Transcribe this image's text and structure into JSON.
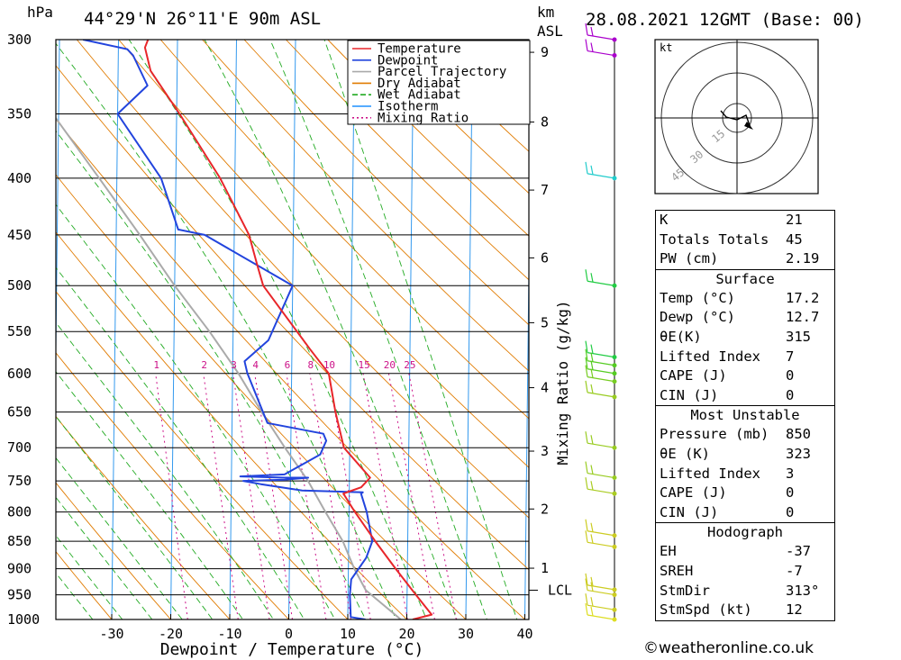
{
  "header": {
    "unit_left": "hPa",
    "location": "44°29'N  26°11'E  90m  ASL",
    "km_label": "km",
    "asl_label": "ASL",
    "datetime": "28.08.2021  12GMT  (Base: 00)"
  },
  "legend": [
    {
      "label": "Temperature",
      "color": "#e8262a",
      "style": "solid"
    },
    {
      "label": "Dewpoint",
      "color": "#2244dd",
      "style": "solid"
    },
    {
      "label": "Parcel Trajectory",
      "color": "#aaaaaa",
      "style": "solid"
    },
    {
      "label": "Dry Adiabat",
      "color": "#e07b00",
      "style": "solid"
    },
    {
      "label": "Wet Adiabat",
      "color": "#22aa22",
      "style": "dashed"
    },
    {
      "label": "Isotherm",
      "color": "#1e90ff",
      "style": "solid"
    },
    {
      "label": "Mixing Ratio",
      "color": "#cc1188",
      "style": "dotted"
    }
  ],
  "chart_data": {
    "type": "line",
    "title": "44°29'N  26°11'E  90m  ASL",
    "xlabel": "Dewpoint / Temperature (°C)",
    "ylabel": "hPa",
    "right_label": "Mixing Ratio (g/kg)",
    "x_ticks": [
      -30,
      -20,
      -10,
      0,
      10,
      20,
      30,
      40
    ],
    "pressure_levels": [
      300,
      350,
      400,
      450,
      500,
      550,
      600,
      650,
      700,
      750,
      800,
      850,
      900,
      950,
      1000
    ],
    "km_ticks": [
      {
        "km": "1",
        "p": 899
      },
      {
        "km": "2",
        "p": 795
      },
      {
        "km": "3",
        "p": 705
      },
      {
        "km": "4",
        "p": 618
      },
      {
        "km": "5",
        "p": 540
      },
      {
        "km": "6",
        "p": 472
      },
      {
        "km": "7",
        "p": 410
      },
      {
        "km": "8",
        "p": 356
      },
      {
        "km": "9",
        "p": 308
      }
    ],
    "lcl": {
      "label": "LCL",
      "p": 941
    },
    "mixing_ratio_labels": [
      "1",
      "2",
      "3",
      "4",
      "6",
      "8",
      "10",
      "15",
      "20",
      "25"
    ],
    "series": [
      {
        "name": "Temperature",
        "color": "#e8262a",
        "points": [
          [
            1000,
            21.0
          ],
          [
            990,
            24.2
          ],
          [
            950,
            21.5
          ],
          [
            900,
            18.0
          ],
          [
            850,
            14.5
          ],
          [
            800,
            11.0
          ],
          [
            770,
            9.0
          ],
          [
            760,
            12.0
          ],
          [
            745,
            13.5
          ],
          [
            700,
            9.0
          ],
          [
            650,
            7.5
          ],
          [
            600,
            6.3
          ],
          [
            570,
            3.0
          ],
          [
            500,
            -5.0
          ],
          [
            480,
            -6.0
          ],
          [
            450,
            -7.5
          ],
          [
            400,
            -12.5
          ],
          [
            350,
            -19.5
          ],
          [
            320,
            -24.5
          ],
          [
            305,
            -25.5
          ],
          [
            300,
            -25.0
          ]
        ]
      },
      {
        "name": "Dewpoint",
        "color": "#2244dd",
        "points": [
          [
            1000,
            13.0
          ],
          [
            995,
            10.5
          ],
          [
            950,
            10.3
          ],
          [
            920,
            10.5
          ],
          [
            880,
            13.0
          ],
          [
            850,
            14.0
          ],
          [
            800,
            13.0
          ],
          [
            770,
            12.0
          ],
          [
            768,
            12.3
          ],
          [
            765,
            2.0
          ],
          [
            755,
            -5.0
          ],
          [
            750,
            -8.0
          ],
          [
            748,
            -1.0
          ],
          [
            745,
            3.0
          ],
          [
            745,
            -1.0
          ],
          [
            743,
            -8.5
          ],
          [
            740,
            -1.0
          ],
          [
            710,
            5.0
          ],
          [
            690,
            6.0
          ],
          [
            680,
            5.5
          ],
          [
            665,
            -4.0
          ],
          [
            600,
            -7.5
          ],
          [
            585,
            -8.0
          ],
          [
            560,
            -4.0
          ],
          [
            500,
            0.0
          ],
          [
            450,
            -15.0
          ],
          [
            445,
            -19.5
          ],
          [
            400,
            -22.5
          ],
          [
            350,
            -30.0
          ],
          [
            330,
            -25.0
          ],
          [
            310,
            -27.5
          ],
          [
            306,
            -28.5
          ],
          [
            300,
            -36.0
          ]
        ]
      },
      {
        "name": "Parcel Trajectory",
        "color": "#aaaaaa",
        "points": [
          [
            1000,
            19.0
          ],
          [
            941,
            13.0
          ],
          [
            900,
            11.0
          ],
          [
            850,
            9.0
          ],
          [
            800,
            6.0
          ],
          [
            750,
            3.0
          ],
          [
            700,
            -1.0
          ],
          [
            650,
            -5.0
          ],
          [
            600,
            -9.0
          ],
          [
            550,
            -14.0
          ],
          [
            500,
            -20.0
          ],
          [
            450,
            -26.0
          ],
          [
            400,
            -33.0
          ],
          [
            350,
            -41.0
          ],
          [
            300,
            -50.0
          ]
        ]
      }
    ]
  },
  "wind_barbs": {
    "label": "Wind profile",
    "levels": [
      {
        "p": 300,
        "color": "#aa00cc"
      },
      {
        "p": 310,
        "color": "#aa00cc"
      },
      {
        "p": 400,
        "color": "#22cccc"
      },
      {
        "p": 500,
        "color": "#22cc44"
      },
      {
        "p": 580,
        "color": "#22cc44"
      },
      {
        "p": 590,
        "color": "#55cc22"
      },
      {
        "p": 600,
        "color": "#55cc22"
      },
      {
        "p": 610,
        "color": "#77cc22"
      },
      {
        "p": 630,
        "color": "#99cc22"
      },
      {
        "p": 700,
        "color": "#99cc22"
      },
      {
        "p": 745,
        "color": "#99cc22"
      },
      {
        "p": 770,
        "color": "#aacc22"
      },
      {
        "p": 840,
        "color": "#cccc22"
      },
      {
        "p": 860,
        "color": "#cccc22"
      },
      {
        "p": 940,
        "color": "#cccc22"
      },
      {
        "p": 950,
        "color": "#cccc22"
      },
      {
        "p": 980,
        "color": "#cccc22"
      },
      {
        "p": 1000,
        "color": "#dddd22"
      }
    ]
  },
  "hodograph": {
    "unit": "kt",
    "ring_labels": [
      "15",
      "30",
      "45"
    ]
  },
  "indices": [
    {
      "head": "",
      "rows": [
        {
          "label": "K",
          "value": "21"
        },
        {
          "label": "Totals Totals",
          "value": "45"
        },
        {
          "label": "PW (cm)",
          "value": "2.19"
        }
      ]
    },
    {
      "head": "Surface",
      "rows": [
        {
          "label": "Temp (°C)",
          "value": "17.2"
        },
        {
          "label": "Dewp (°C)",
          "value": "12.7"
        },
        {
          "label": "θE(K)",
          "value": "315"
        },
        {
          "label": "Lifted Index",
          "value": "7"
        },
        {
          "label": "CAPE (J)",
          "value": "0"
        },
        {
          "label": "CIN (J)",
          "value": "0"
        }
      ]
    },
    {
      "head": "Most Unstable",
      "rows": [
        {
          "label": "Pressure (mb)",
          "value": "850"
        },
        {
          "label": "θE (K)",
          "value": "323"
        },
        {
          "label": "Lifted Index",
          "value": "3"
        },
        {
          "label": "CAPE (J)",
          "value": "0"
        },
        {
          "label": "CIN (J)",
          "value": "0"
        }
      ]
    },
    {
      "head": "Hodograph",
      "rows": [
        {
          "label": "EH",
          "value": "-37"
        },
        {
          "label": "SREH",
          "value": "-7"
        },
        {
          "label": "StmDir",
          "value": "313°"
        },
        {
          "label": "StmSpd (kt)",
          "value": "12"
        }
      ]
    }
  ],
  "footer": {
    "credit": "©weatheronline.co.uk"
  },
  "colors": {
    "isotherm": "#3399ee",
    "dry_adiabat": "#e07b00",
    "wet_adiabat": "#22aa22",
    "mixing_ratio": "#cc1188",
    "parcel": "#aaaaaa",
    "temperature": "#e8262a",
    "dewpoint": "#2244dd"
  }
}
